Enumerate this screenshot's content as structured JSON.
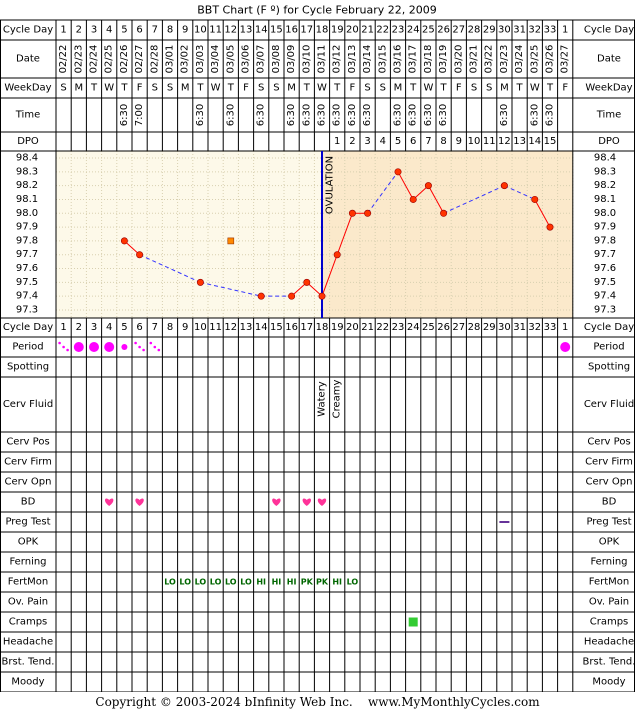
{
  "title": "BBT Chart (F º) for Cycle February 22, 2009",
  "footer": {
    "copyright": "Copyright © 2003-2024 bInfinity Web Inc.",
    "site": "www.MyMonthlyCycles.com"
  },
  "row_labels": {
    "cycle_day": "Cycle Day",
    "date": "Date",
    "weekday": "WeekDay",
    "time": "Time",
    "dpo": "DPO",
    "period": "Period",
    "spotting": "Spotting",
    "cerv_fluid": "Cerv Fluid",
    "cerv_pos": "Cerv Pos",
    "cerv_firm": "Cerv Firm",
    "cerv_opn": "Cerv Opn",
    "bd": "BD",
    "preg_test": "Preg Test",
    "opk": "OPK",
    "ferning": "Ferning",
    "fertmon": "FertMon",
    "ov_pain": "Ov. Pain",
    "cramps": "Cramps",
    "headache": "Headache",
    "brst_tend": "Brst. Tend.",
    "moody": "Moody"
  },
  "cycle_days": [
    "1",
    "2",
    "3",
    "4",
    "5",
    "6",
    "7",
    "8",
    "9",
    "10",
    "11",
    "12",
    "13",
    "14",
    "15",
    "16",
    "17",
    "18",
    "19",
    "20",
    "21",
    "22",
    "23",
    "24",
    "25",
    "26",
    "27",
    "28",
    "29",
    "30",
    "31",
    "32",
    "33",
    "1"
  ],
  "dates": [
    "02/22",
    "02/23",
    "02/24",
    "02/25",
    "02/26",
    "02/27",
    "02/28",
    "03/01",
    "03/02",
    "03/03",
    "03/04",
    "03/05",
    "03/06",
    "03/07",
    "03/08",
    "03/09",
    "03/10",
    "03/11",
    "03/12",
    "03/13",
    "03/14",
    "03/15",
    "03/16",
    "03/17",
    "03/18",
    "03/19",
    "03/20",
    "03/21",
    "03/22",
    "03/23",
    "03/24",
    "03/25",
    "03/26",
    "03/27"
  ],
  "weekdays": [
    "S",
    "M",
    "T",
    "W",
    "T",
    "F",
    "S",
    "S",
    "M",
    "T",
    "W",
    "T",
    "F",
    "S",
    "S",
    "M",
    "T",
    "W",
    "T",
    "F",
    "S",
    "S",
    "M",
    "T",
    "W",
    "T",
    "F",
    "S",
    "S",
    "M",
    "T",
    "W",
    "T",
    "F"
  ],
  "times": [
    "",
    "",
    "",
    "",
    "6:30",
    "7:00",
    "",
    "",
    "",
    "6:30",
    "",
    "6:30",
    "",
    "6:30",
    "",
    "6:30",
    "6:30",
    "6:30",
    "6:30",
    "6:30",
    "6:30",
    "",
    "6:30",
    "6:30",
    "6:30",
    "6:30",
    "",
    "",
    "",
    "6:30",
    "",
    "6:30",
    "6:30",
    ""
  ],
  "dpo": [
    "",
    "",
    "",
    "",
    "",
    "",
    "",
    "",
    "",
    "",
    "",
    "",
    "",
    "",
    "",
    "",
    "",
    "",
    "1",
    "2",
    "3",
    "4",
    "5",
    "6",
    "7",
    "8",
    "9",
    "10",
    "11",
    "12",
    "13",
    "14",
    "15",
    ""
  ],
  "ovulation_label": "OVULATION",
  "cerv_fluid": [
    "",
    "",
    "",
    "",
    "",
    "",
    "",
    "",
    "",
    "",
    "",
    "",
    "",
    "",
    "",
    "",
    "",
    "Watery",
    "Creamy",
    "",
    "",
    "",
    "",
    "",
    "",
    "",
    "",
    "",
    "",
    "",
    "",
    "",
    "",
    ""
  ],
  "fertmon": [
    "",
    "",
    "",
    "",
    "",
    "",
    "",
    "LO",
    "LO",
    "LO",
    "LO",
    "LO",
    "LO",
    "HI",
    "HI",
    "HI",
    "PK",
    "PK",
    "HI",
    "LO",
    "",
    "",
    "",
    "",
    "",
    "",
    "",
    "",
    "",
    "",
    "",
    "",
    "",
    ""
  ],
  "chart_data": {
    "type": "line",
    "title": "BBT Chart (F º) for Cycle February 22, 2009",
    "xlabel": "Cycle Day",
    "ylabel": "",
    "ylim": [
      97.3,
      98.4
    ],
    "yticks": [
      "98.4",
      "98.3",
      "98.2",
      "98.1",
      "98.0",
      "97.9",
      "97.8",
      "97.7",
      "97.6",
      "97.5",
      "97.4",
      "97.3"
    ],
    "grid": true,
    "ovulation_day": 18,
    "temps": [
      null,
      null,
      null,
      null,
      97.8,
      97.7,
      null,
      null,
      null,
      97.5,
      null,
      null,
      null,
      97.4,
      null,
      97.4,
      97.5,
      97.4,
      97.7,
      98.0,
      98.0,
      null,
      98.3,
      98.1,
      98.2,
      98.0,
      null,
      null,
      null,
      98.2,
      null,
      98.1,
      97.9,
      null
    ],
    "excluded_points": [
      {
        "day": 12,
        "temp": 97.8
      }
    ],
    "colors": {
      "pre_ov_bg": "#fdf9e9",
      "post_ov_bg": "#fbe9cb",
      "line": "#ff0000",
      "dashed": "#3333ff",
      "ov_line": "#0000cc",
      "point": "#ff3300",
      "excluded": "#ff8800"
    }
  },
  "period": [
    "spot",
    "heavy",
    "heavy",
    "heavy",
    "light",
    "spot",
    "spot",
    "",
    "",
    "",
    "",
    "",
    "",
    "",
    "",
    "",
    "",
    "",
    "",
    "",
    "",
    "",
    "",
    "",
    "",
    "",
    "",
    "",
    "",
    "",
    "",
    "",
    "",
    "heavy"
  ],
  "bd_days": [
    4,
    6,
    15,
    17,
    18
  ],
  "preg_test_days": [
    30
  ],
  "cramps_days": [
    24
  ],
  "colors": {
    "period": "#ff00ff",
    "bd": "#ff3399",
    "fertmon": "#006600",
    "preg_test": "#663399",
    "cramps": "#33cc33"
  }
}
